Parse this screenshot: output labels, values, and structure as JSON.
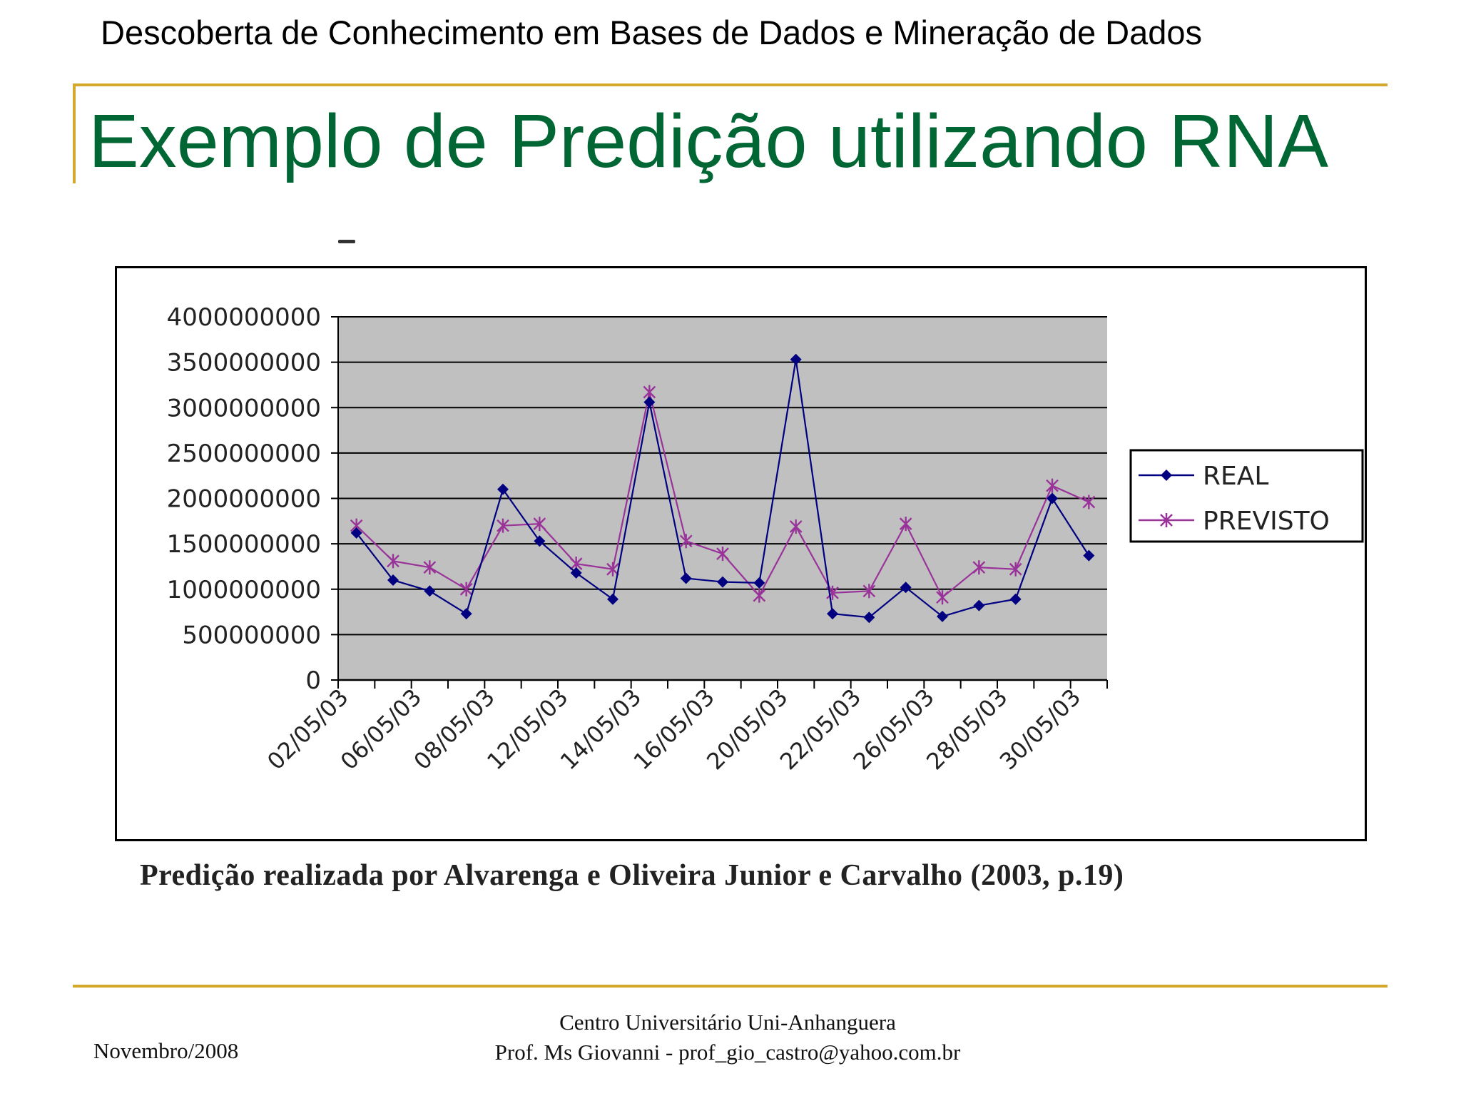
{
  "header": {
    "course_title": "Descoberta de Conhecimento em Bases de Dados e Mineração de Dados",
    "slide_title": "Exemplo de Predição utilizando RNA"
  },
  "caption": "Predição realizada por Alvarenga e Oliveira Junior e Carvalho (2003, p.19)",
  "footer": {
    "date": "Novembro/2008",
    "institution": "Centro Universitário Uni-Anhanguera",
    "author": "Prof. Ms Giovanni - prof_gio_castro@yahoo.com.br"
  },
  "colors": {
    "title_green": "#006633",
    "accent_gold": "#D4A82A",
    "plot_bg": "#C0C0C0",
    "real_series": "#000080",
    "previsto_series": "#993399"
  },
  "chart_data": {
    "type": "line",
    "title": "",
    "xlabel": "",
    "ylabel": "",
    "ylim": [
      0,
      4000000000
    ],
    "yticks": [
      "4000000000",
      "3500000000",
      "3000000000",
      "2500000000",
      "2000000000",
      "1500000000",
      "1000000000",
      "500000000",
      "0"
    ],
    "ytick_values": [
      4000000000,
      3500000000,
      3000000000,
      2500000000,
      2000000000,
      1500000000,
      1000000000,
      500000000,
      0
    ],
    "x_labels": [
      "02/05/03",
      "06/05/03",
      "08/05/03",
      "12/05/03",
      "14/05/03",
      "16/05/03",
      "20/05/03",
      "22/05/03",
      "26/05/03",
      "28/05/03",
      "30/05/03"
    ],
    "n_points": 21,
    "grid": "horizontal",
    "legend_position": "right",
    "series": [
      {
        "name": "REAL",
        "marker": "diamond",
        "values": [
          1620000000,
          1100000000,
          980000000,
          730000000,
          2100000000,
          1530000000,
          1180000000,
          890000000,
          3060000000,
          1120000000,
          1080000000,
          1070000000,
          3530000000,
          730000000,
          690000000,
          1020000000,
          700000000,
          820000000,
          890000000,
          2000000000,
          1370000000
        ]
      },
      {
        "name": "PREVISTO",
        "marker": "asterisk",
        "values": [
          1700000000,
          1310000000,
          1240000000,
          1000000000,
          1700000000,
          1720000000,
          1280000000,
          1220000000,
          3170000000,
          1530000000,
          1390000000,
          930000000,
          1690000000,
          960000000,
          980000000,
          1720000000,
          910000000,
          1240000000,
          1220000000,
          2140000000,
          1960000000
        ]
      }
    ]
  }
}
